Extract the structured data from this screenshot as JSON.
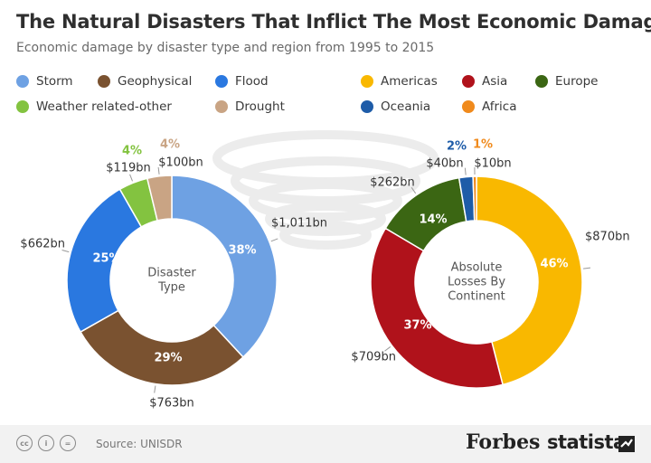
{
  "header": {
    "title": "The Natural Disasters That Inflict The Most Economic Damage",
    "subtitle": "Economic damage by disaster type and region from 1995 to 2015"
  },
  "legend_left": [
    {
      "label": "Storm",
      "color": "#6ea1e3"
    },
    {
      "label": "Geophysical",
      "color": "#7a5230"
    },
    {
      "label": "Flood",
      "color": "#2a78e0"
    },
    {
      "label": "Weather related-other",
      "color": "#83c340"
    },
    {
      "label": "Drought",
      "color": "#c9a484"
    }
  ],
  "legend_right": [
    {
      "label": "Americas",
      "color": "#f9b800"
    },
    {
      "label": "Asia",
      "color": "#b0121b"
    },
    {
      "label": "Europe",
      "color": "#3b6613"
    },
    {
      "label": "Oceania",
      "color": "#1e5ca8"
    },
    {
      "label": "Africa",
      "color": "#f08a1c"
    }
  ],
  "chart_data": [
    {
      "type": "pie",
      "center_label": [
        "Disaster",
        "Type"
      ],
      "categories": [
        "Storm",
        "Geophysical",
        "Flood",
        "Weather related-other",
        "Drought"
      ],
      "values": [
        1011,
        763,
        662,
        119,
        100
      ],
      "value_labels": [
        "$1,011bn",
        "$763bn",
        "$662bn",
        "$119bn",
        "$100bn"
      ],
      "percent_labels": [
        "38%",
        "29%",
        "25%",
        "4%",
        "4%"
      ],
      "colors": [
        "#6ea1e3",
        "#7a5230",
        "#2a78e0",
        "#83c340",
        "#c9a484"
      ]
    },
    {
      "type": "pie",
      "center_label": [
        "Absolute",
        "Losses By",
        "Continent"
      ],
      "categories": [
        "Americas",
        "Asia",
        "Europe",
        "Oceania",
        "Africa"
      ],
      "values": [
        870,
        709,
        262,
        40,
        10
      ],
      "value_labels": [
        "$870bn",
        "$709bn",
        "$262bn",
        "$40bn",
        "$10bn"
      ],
      "percent_labels": [
        "46%",
        "37%",
        "14%",
        "2%",
        "1%"
      ],
      "colors": [
        "#f9b800",
        "#b0121b",
        "#3b6613",
        "#1e5ca8",
        "#f08a1c"
      ]
    }
  ],
  "footer": {
    "source": "Source: UNISDR",
    "cc_icons": [
      "cc",
      "i",
      "="
    ],
    "brand1": "Forbes",
    "brand2": "statista"
  }
}
